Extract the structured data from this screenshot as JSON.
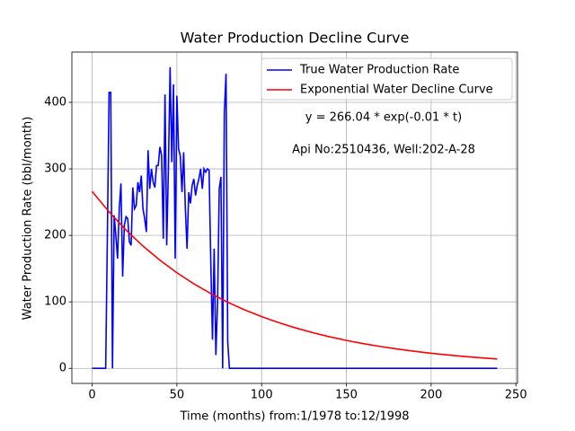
{
  "chart_data": {
    "type": "line",
    "title": "Water Production Decline Curve",
    "xlabel": "Time (months) from:1/1978 to:12/1998",
    "ylabel": "Water Production Rate (bbl/month)",
    "annotations": [
      "y = 266.04 * exp(-0.01 * t)",
      "Api No:2510436, Well:202-A-28"
    ],
    "xlim": [
      -11.95,
      250.95
    ],
    "ylim": [
      -22.65,
      475.65
    ],
    "xticks": [
      0,
      50,
      100,
      150,
      200,
      250
    ],
    "yticks": [
      0,
      100,
      200,
      300,
      400
    ],
    "grid": true,
    "legend": "upper right",
    "series": [
      {
        "name": "True Water Production Rate",
        "color": "#0000ff",
        "x": [
          0,
          1,
          2,
          3,
          4,
          5,
          6,
          7,
          8,
          9,
          10,
          11,
          12,
          13,
          14,
          15,
          16,
          17,
          18,
          19,
          20,
          21,
          22,
          23,
          24,
          25,
          26,
          27,
          28,
          29,
          30,
          31,
          32,
          33,
          34,
          35,
          36,
          37,
          38,
          39,
          40,
          41,
          42,
          43,
          44,
          45,
          46,
          47,
          48,
          49,
          50,
          51,
          52,
          53,
          54,
          55,
          56,
          57,
          58,
          59,
          60,
          61,
          62,
          63,
          64,
          65,
          66,
          67,
          68,
          69,
          70,
          71,
          72,
          73,
          74,
          75,
          76,
          77,
          78,
          79,
          80,
          81,
          239
        ],
        "values": [
          0,
          0,
          0,
          0,
          0,
          0,
          0,
          0,
          0,
          200,
          415,
          415,
          0,
          230,
          200,
          165,
          240,
          278,
          138,
          215,
          228,
          225,
          190,
          185,
          272,
          240,
          245,
          280,
          265,
          290,
          240,
          225,
          205,
          328,
          270,
          300,
          280,
          272,
          305,
          305,
          333,
          320,
          195,
          412,
          185,
          300,
          453,
          310,
          427,
          165,
          410,
          330,
          320,
          265,
          325,
          240,
          180,
          265,
          248,
          275,
          285,
          260,
          275,
          285,
          300,
          270,
          300,
          295,
          300,
          298,
          160,
          43,
          180,
          20,
          100,
          270,
          288,
          0,
          385,
          443,
          40,
          0,
          0
        ]
      },
      {
        "name": "Exponential Water Decline Curve",
        "color": "#ff0000",
        "x": [
          0,
          10,
          20,
          30,
          40,
          50,
          60,
          70,
          80,
          90,
          100,
          110,
          120,
          130,
          140,
          150,
          160,
          170,
          180,
          190,
          200,
          210,
          220,
          230,
          239
        ],
        "values": [
          266.0,
          235.3,
          208.0,
          183.9,
          162.7,
          143.8,
          127.2,
          112.5,
          99.4,
          87.9,
          77.8,
          68.8,
          60.8,
          53.8,
          47.5,
          42.0,
          37.2,
          32.9,
          29.1,
          25.7,
          22.7,
          20.1,
          17.8,
          15.7,
          14.1
        ]
      }
    ]
  }
}
